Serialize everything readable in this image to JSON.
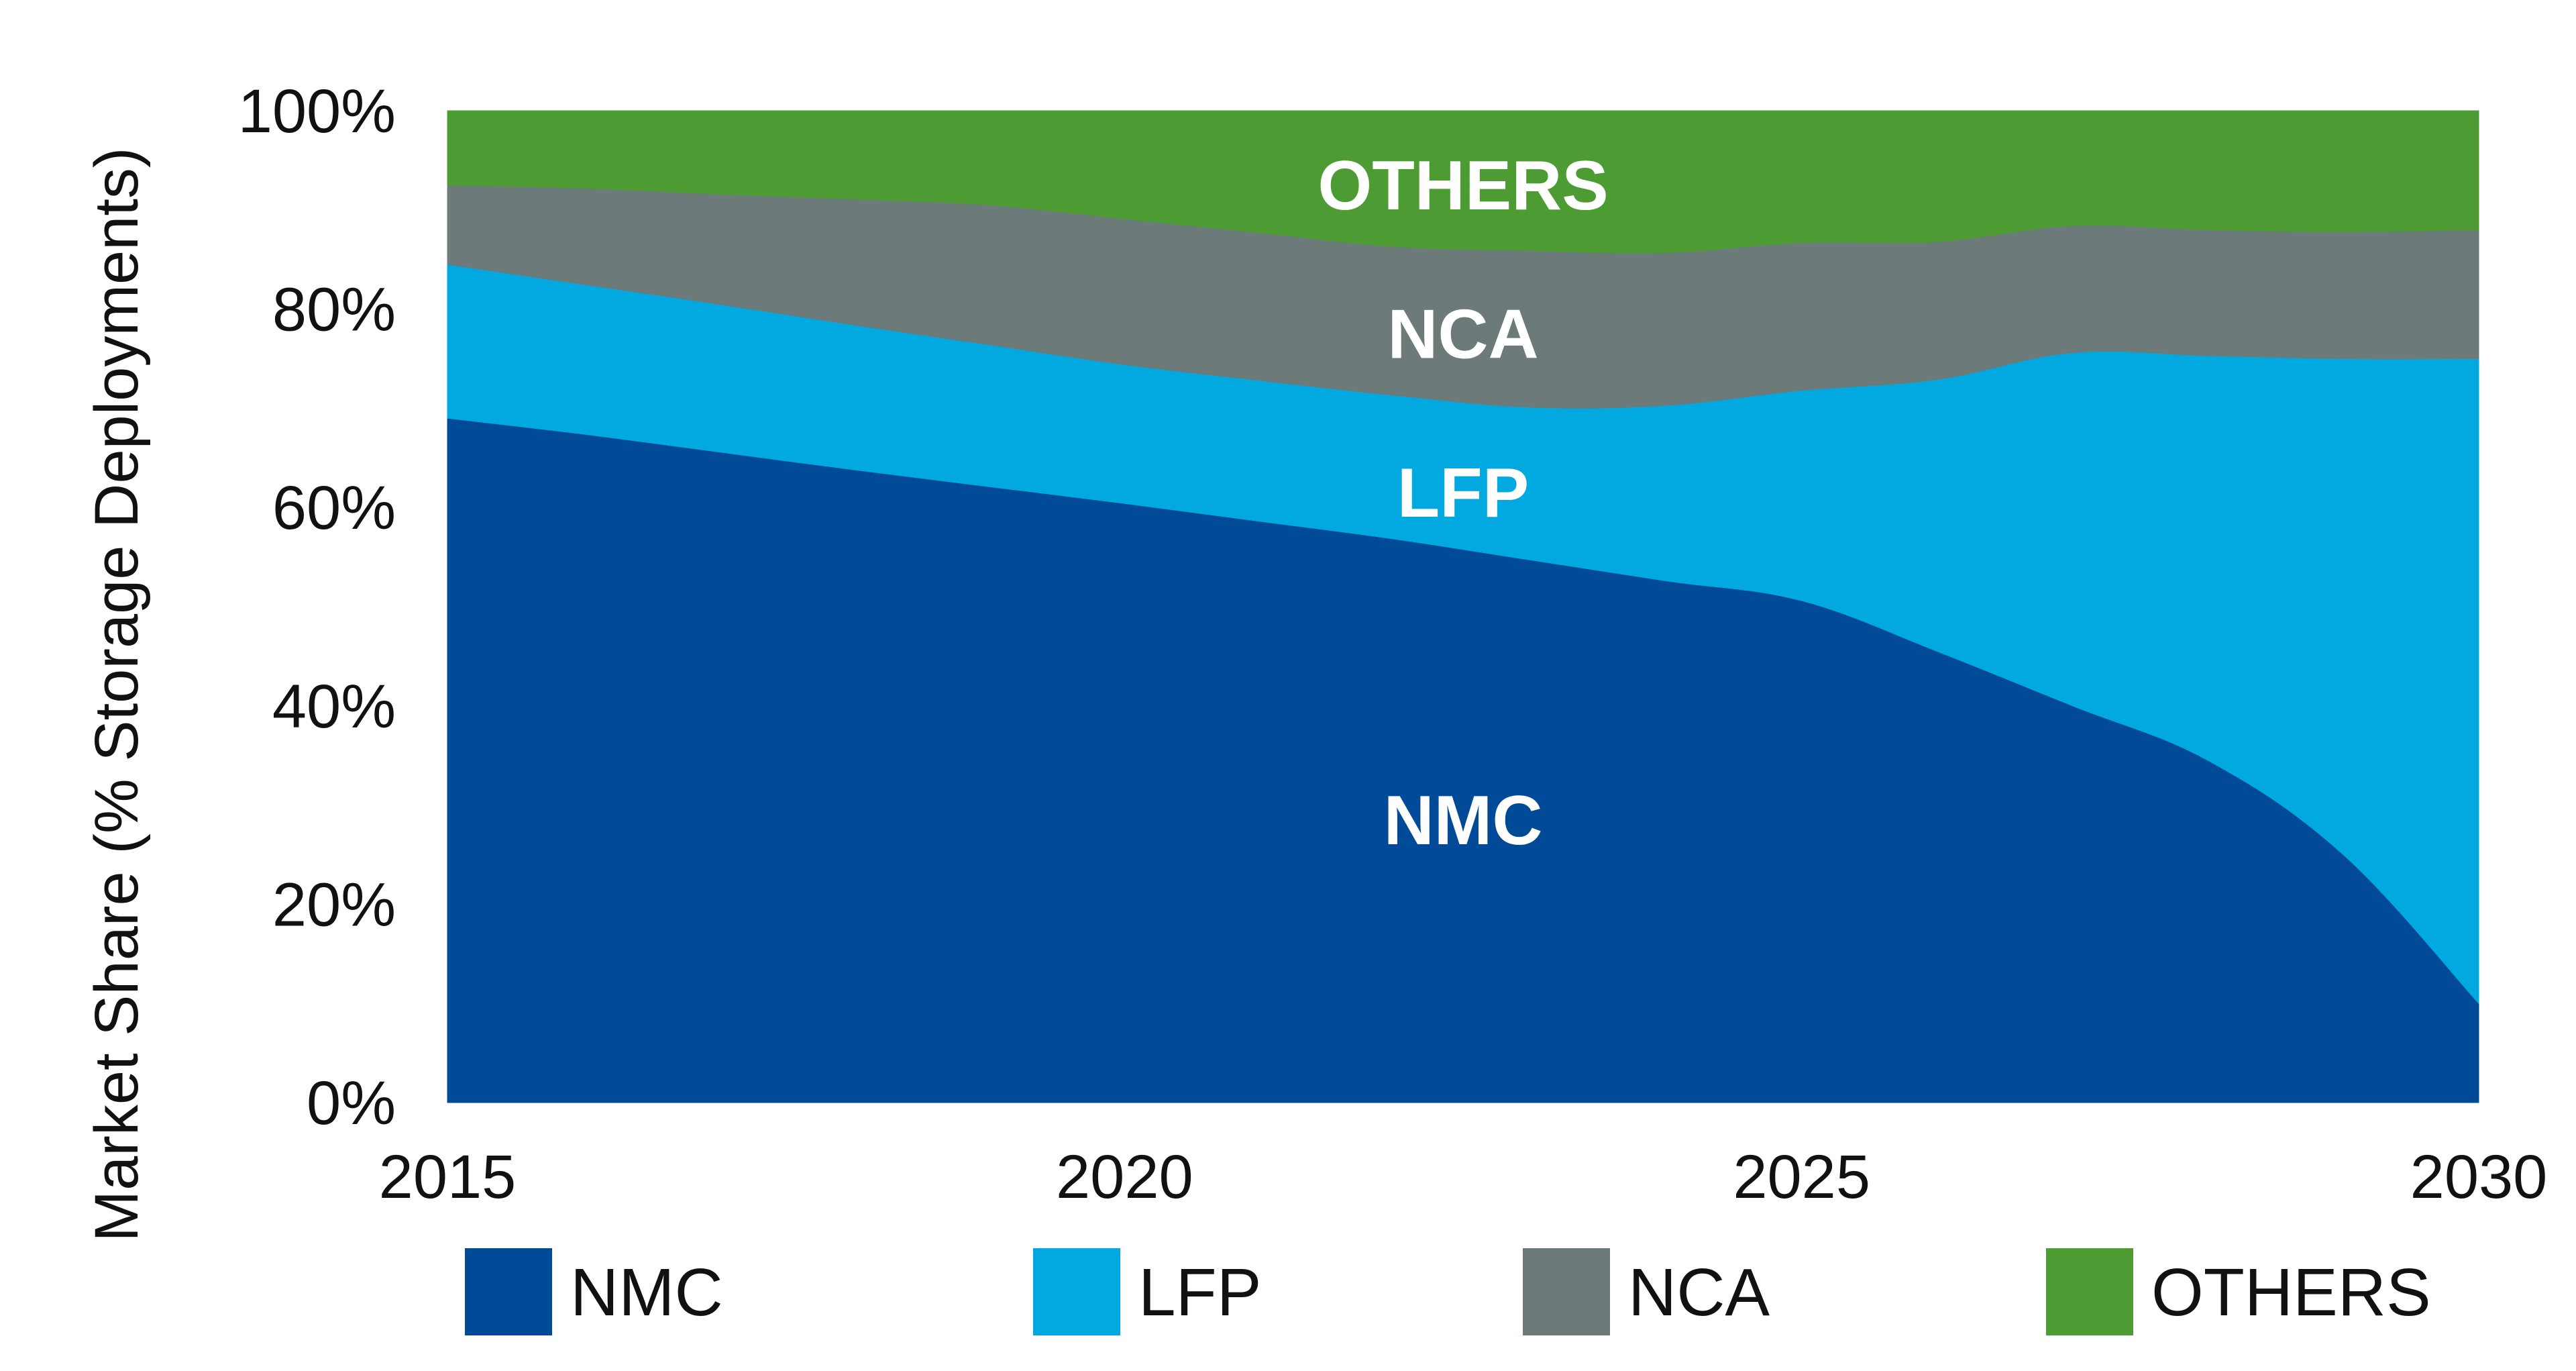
{
  "chart_data": {
    "type": "area",
    "stacked": true,
    "ylabel": "Market Share (% Storage Deployments)",
    "xlabel": "",
    "title": "",
    "xlim": [
      2015,
      2030
    ],
    "ylim": [
      0,
      100
    ],
    "x_ticks": [
      "2015",
      "2020",
      "2025",
      "2030"
    ],
    "y_ticks": [
      "0%",
      "20%",
      "40%",
      "60%",
      "80%",
      "100%"
    ],
    "grid": false,
    "legend_position": "bottom",
    "x": [
      2015,
      2016,
      2017,
      2018,
      2019,
      2020,
      2021,
      2022,
      2023,
      2024,
      2025,
      2026,
      2027,
      2028,
      2029,
      2030
    ],
    "series": [
      {
        "name": "NMC",
        "color": "#014a98",
        "values": [
          69,
          67.4,
          65.6,
          63.8,
          62.1,
          60.4,
          58.6,
          56.8,
          54.7,
          52.6,
          50.6,
          45.5,
          40.0,
          34.5,
          25.0,
          10.0
        ]
      },
      {
        "name": "LFP",
        "color": "#02a8e0",
        "values": [
          15.5,
          15.1,
          14.9,
          14.6,
          14.3,
          14.0,
          14.2,
          14.5,
          15.4,
          17.7,
          21.2,
          27.4,
          35.6,
          40.8,
          50.0,
          65.0
        ]
      },
      {
        "name": "NCA",
        "color": "#6c7b79",
        "values": [
          8.0,
          9.7,
          11.1,
          12.7,
          14.1,
          14.7,
          14.9,
          15.0,
          15.8,
          15.4,
          14.9,
          13.9,
          12.8,
          12.7,
          12.8,
          13.0
        ]
      },
      {
        "name": "OTHERS",
        "color": "#4c9c33",
        "values": [
          7.5,
          7.8,
          8.4,
          8.9,
          9.5,
          10.9,
          12.3,
          13.7,
          14.1,
          14.3,
          13.3,
          13.2,
          11.6,
          12.0,
          12.2,
          12.0
        ]
      }
    ],
    "area_labels": [
      "OTHERS",
      "NCA",
      "LFP",
      "NMC"
    ],
    "legend": [
      "NMC",
      "LFP",
      "NCA",
      "OTHERS"
    ]
  }
}
